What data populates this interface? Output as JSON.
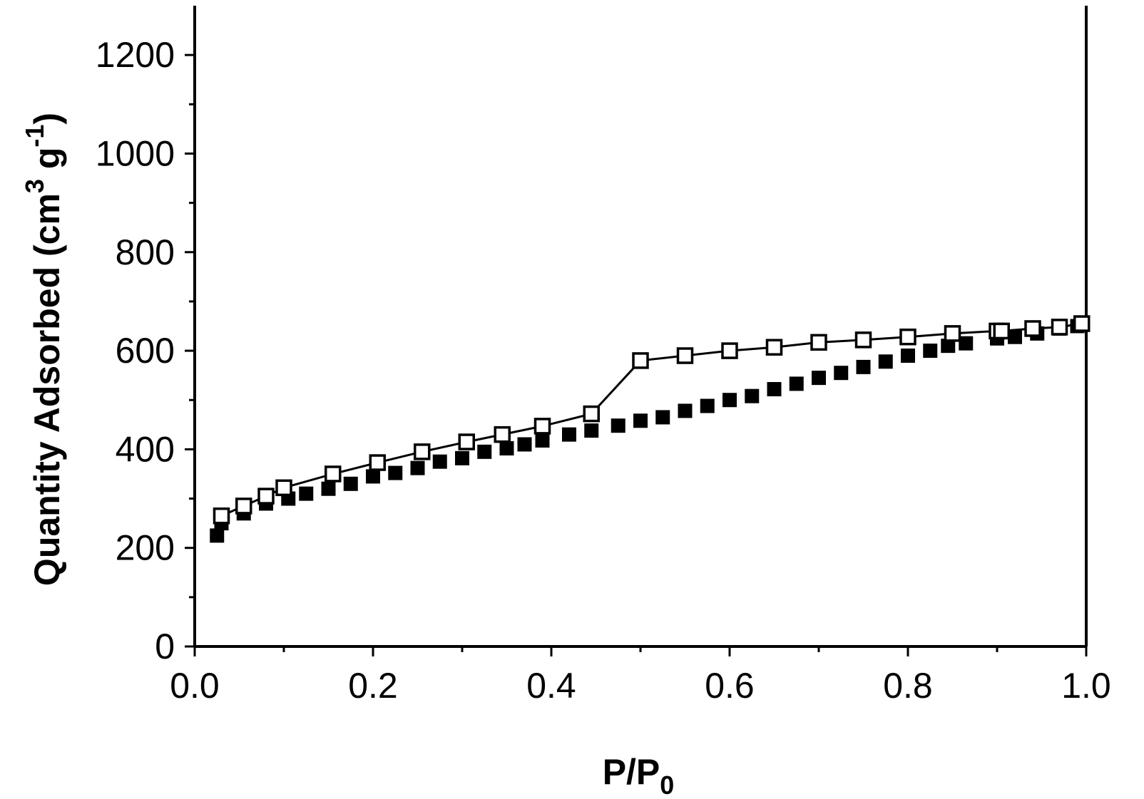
{
  "chart_data": {
    "type": "scatter",
    "xlabel": {
      "main": "P/P",
      "sub": "0"
    },
    "ylabel": {
      "main": "Quantity Adsorbed (cm",
      "sup1": "3",
      "mid": " g",
      "sup2": "-1",
      "end": ")"
    },
    "xlim": [
      0.0,
      1.0
    ],
    "ylim": [
      0,
      1300
    ],
    "x_ticks": [
      0.0,
      0.2,
      0.4,
      0.6,
      0.8,
      1.0
    ],
    "x_tick_labels": [
      "0.0",
      "0.2",
      "0.4",
      "0.6",
      "0.8",
      "1.0"
    ],
    "y_ticks": [
      0,
      200,
      400,
      600,
      800,
      1000,
      1200
    ],
    "y_tick_labels": [
      "0",
      "200",
      "400",
      "600",
      "800",
      "1000",
      "1200"
    ],
    "grid": false,
    "legend": "none",
    "series": [
      {
        "marker": "filled-square",
        "connected": false,
        "color": "#000000",
        "x": [
          0.025,
          0.03,
          0.055,
          0.08,
          0.105,
          0.125,
          0.15,
          0.175,
          0.2,
          0.225,
          0.25,
          0.275,
          0.3,
          0.325,
          0.35,
          0.37,
          0.39,
          0.42,
          0.445,
          0.475,
          0.5,
          0.525,
          0.55,
          0.575,
          0.6,
          0.625,
          0.65,
          0.675,
          0.7,
          0.725,
          0.75,
          0.775,
          0.8,
          0.825,
          0.845,
          0.865,
          0.9,
          0.92,
          0.945,
          0.97,
          0.99
        ],
        "y": [
          225,
          250,
          270,
          290,
          300,
          310,
          320,
          330,
          345,
          352,
          362,
          375,
          382,
          395,
          402,
          410,
          418,
          430,
          438,
          448,
          458,
          465,
          478,
          488,
          500,
          508,
          522,
          533,
          545,
          555,
          567,
          578,
          590,
          600,
          610,
          615,
          625,
          628,
          635,
          645,
          650
        ]
      },
      {
        "marker": "open-square",
        "connected": true,
        "color": "#000000",
        "x": [
          0.03,
          0.055,
          0.08,
          0.1,
          0.155,
          0.205,
          0.255,
          0.305,
          0.345,
          0.39,
          0.445,
          0.5,
          0.55,
          0.6,
          0.65,
          0.7,
          0.75,
          0.8,
          0.85,
          0.9,
          0.905,
          0.94,
          0.97,
          0.995
        ],
        "y": [
          265,
          285,
          305,
          322,
          350,
          373,
          395,
          415,
          430,
          447,
          472,
          580,
          590,
          600,
          607,
          617,
          622,
          628,
          635,
          640,
          640,
          645,
          648,
          655
        ]
      }
    ]
  }
}
